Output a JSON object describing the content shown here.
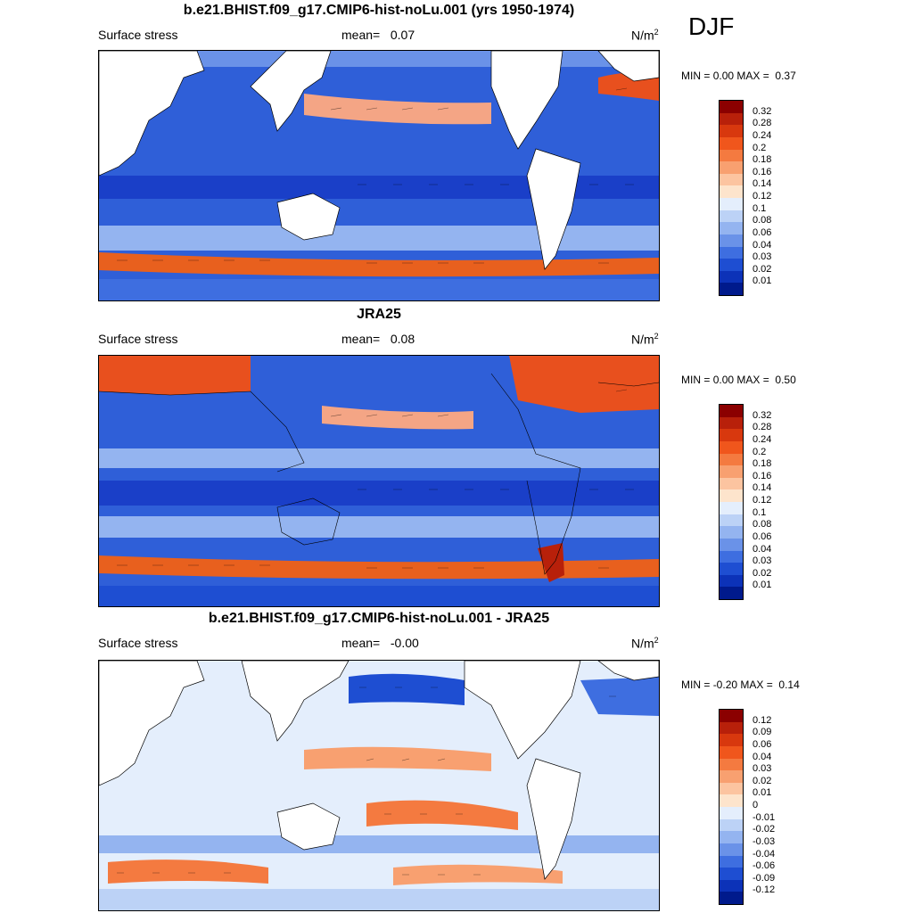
{
  "season": "DJF",
  "panels": [
    {
      "title": "b.e21.BHIST.f09_g17.CMIP6-hist-noLu.001 (yrs 1950-1974)",
      "left_label": "Surface stress",
      "mean_label": "mean=",
      "mean_value": "0.07",
      "units_base": "N/m",
      "units_sup": "2",
      "min_label": "MIN =",
      "min_value": "0.00",
      "max_label": "MAX =",
      "max_value": "0.37",
      "colorbar": {
        "labels": [
          "0.32",
          "0.28",
          "0.24",
          "0.2",
          "0.18",
          "0.16",
          "0.14",
          "0.12",
          "0.1",
          "0.08",
          "0.06",
          "0.04",
          "0.03",
          "0.02",
          "0.01"
        ],
        "colors": [
          "#8b0000",
          "#b8200a",
          "#d8380e",
          "#f0561c",
          "#f47a40",
          "#f8a070",
          "#fcc4a0",
          "#fde4cc",
          "#e4eefc",
          "#bcd2f6",
          "#94b4f0",
          "#6a92e8",
          "#3e6ee0",
          "#1e4ed2",
          "#0c32b8",
          "#001a8c"
        ]
      }
    },
    {
      "title": "JRA25",
      "left_label": "Surface stress",
      "mean_label": "mean=",
      "mean_value": "0.08",
      "units_base": "N/m",
      "units_sup": "2",
      "min_label": "MIN =",
      "min_value": "0.00",
      "max_label": "MAX =",
      "max_value": "0.50",
      "colorbar": {
        "labels": [
          "0.32",
          "0.28",
          "0.24",
          "0.2",
          "0.18",
          "0.16",
          "0.14",
          "0.12",
          "0.1",
          "0.08",
          "0.06",
          "0.04",
          "0.03",
          "0.02",
          "0.01"
        ],
        "colors": [
          "#8b0000",
          "#b8200a",
          "#d8380e",
          "#f0561c",
          "#f47a40",
          "#f8a070",
          "#fcc4a0",
          "#fde4cc",
          "#e4eefc",
          "#bcd2f6",
          "#94b4f0",
          "#6a92e8",
          "#3e6ee0",
          "#1e4ed2",
          "#0c32b8",
          "#001a8c"
        ]
      }
    },
    {
      "title": "b.e21.BHIST.f09_g17.CMIP6-hist-noLu.001 - JRA25",
      "left_label": "Surface stress",
      "mean_label": "mean=",
      "mean_value": "-0.00",
      "units_base": "N/m",
      "units_sup": "2",
      "min_label": "MIN =",
      "min_value": "-0.20",
      "max_label": "MAX =",
      "max_value": "0.14",
      "colorbar": {
        "labels": [
          "0.12",
          "0.09",
          "0.06",
          "0.04",
          "0.03",
          "0.02",
          "0.01",
          "0",
          "-0.01",
          "-0.02",
          "-0.03",
          "-0.04",
          "-0.06",
          "-0.09",
          "-0.12"
        ],
        "colors": [
          "#8b0000",
          "#b8200a",
          "#d8380e",
          "#f0561c",
          "#f47a40",
          "#f8a070",
          "#fcc4a0",
          "#fde4cc",
          "#e4eefc",
          "#bcd2f6",
          "#94b4f0",
          "#6a92e8",
          "#3e6ee0",
          "#1e4ed2",
          "#0c32b8",
          "#001a8c"
        ]
      }
    }
  ]
}
